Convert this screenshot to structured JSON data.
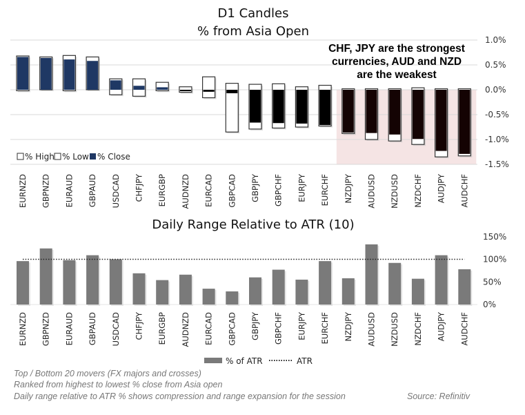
{
  "chart_data": [
    {
      "type": "bar",
      "title": "D1 Candles",
      "subtitle": "% from Asia Open",
      "categories": [
        "EURNZD",
        "GBPNZD",
        "EURAUD",
        "GBPAUD",
        "USDCAD",
        "CHFJPY",
        "EURGBP",
        "AUDNZD",
        "EURCAD",
        "GBPCAD",
        "GBPJPY",
        "GBPCHF",
        "EURJPY",
        "EURCHF",
        "NZDJPY",
        "AUDUSD",
        "NZDUSD",
        "NZDCHF",
        "AUDJPY",
        "AUDCHF"
      ],
      "series": [
        {
          "name": "% High",
          "values": [
            0.68,
            0.66,
            0.69,
            0.66,
            0.22,
            0.22,
            0.15,
            0.06,
            0.26,
            0.13,
            0.11,
            0.12,
            0.06,
            0.09,
            0.02,
            0.02,
            0.02,
            0.04,
            0.02,
            0.02
          ]
        },
        {
          "name": "% Low",
          "values": [
            -0.02,
            0.0,
            -0.02,
            0.0,
            -0.1,
            -0.13,
            -0.02,
            -0.05,
            -0.16,
            -0.85,
            -0.79,
            -0.77,
            -0.75,
            -0.73,
            -0.88,
            -1.0,
            -1.03,
            -1.1,
            -1.35,
            -1.33
          ]
        },
        {
          "name": "% Close",
          "values": [
            0.66,
            0.64,
            0.61,
            0.58,
            0.19,
            0.08,
            0.05,
            -0.02,
            -0.04,
            -0.07,
            -0.66,
            -0.67,
            -0.68,
            -0.71,
            -0.86,
            -0.87,
            -0.9,
            -0.99,
            -1.23,
            -1.29
          ]
        }
      ],
      "yticks": [
        "1.0%",
        "0.5%",
        "0.0%",
        "-0.5%",
        "-1.0%",
        "-1.5%"
      ],
      "ylim": [
        -1.5,
        1.0
      ],
      "grid": true,
      "legend_position": "bottom-left",
      "annotation": [
        "CHF, JPY are the strongest",
        "currencies, AUD and NZD",
        "are the weakest"
      ],
      "highlight_categories": [
        "NZDJPY",
        "AUDUSD",
        "NZDUSD",
        "NZDCHF",
        "AUDJPY",
        "AUDCHF"
      ],
      "colors": {
        "positive_close": "#1f3864",
        "negative_close": "#000000",
        "highlight_close": "#140303",
        "highlight_bg": "#f5e4e4"
      }
    },
    {
      "type": "bar",
      "title": "Daily Range Relative to ATR (10)",
      "categories": [
        "EURNZD",
        "GBPNZD",
        "EURAUD",
        "GBPAUD",
        "USDCAD",
        "CHFJPY",
        "EURGBP",
        "AUDNZD",
        "EURCAD",
        "GBPCAD",
        "GBPJPY",
        "GBPCHF",
        "EURJPY",
        "EURCHF",
        "NZDJPY",
        "AUDUSD",
        "NZDUSD",
        "NZDCHF",
        "AUDJPY",
        "AUDCHF"
      ],
      "series": [
        {
          "name": "% of ATR",
          "values": [
            96,
            124,
            98,
            109,
            100,
            69,
            54,
            66,
            35,
            29,
            60,
            77,
            55,
            96,
            58,
            133,
            92,
            57,
            109,
            78
          ]
        },
        {
          "name": "ATR",
          "values": [
            100,
            100,
            100,
            100,
            100,
            100,
            100,
            100,
            100,
            100,
            100,
            100,
            100,
            100,
            100,
            100,
            100,
            100,
            100,
            100
          ]
        }
      ],
      "yticks": [
        "150%",
        "100%",
        "50%",
        "0%"
      ],
      "ylim": [
        0,
        150
      ],
      "grid": false,
      "legend_position": "bottom",
      "colors": {
        "bar": "#7a7a7a"
      }
    }
  ],
  "footnotes": [
    "Top / Bottom 20 movers (FX majors and crosses)",
    "Ranked from highest to lowest % close from Asia open",
    "Daily range relative to ATR % shows compression and range expansion for the session"
  ],
  "source": "Source: Refinitiv"
}
